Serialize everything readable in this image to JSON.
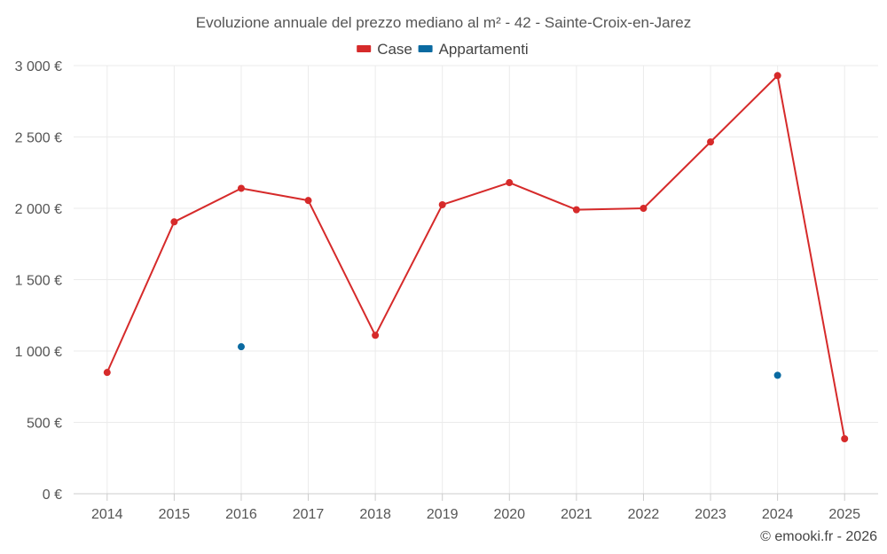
{
  "chart_data": {
    "type": "line",
    "title": "Evoluzione annuale del prezzo mediano al m² - 42 - Sainte-Croix-en-Jarez",
    "categories": [
      "2014",
      "2015",
      "2016",
      "2017",
      "2018",
      "2019",
      "2020",
      "2021",
      "2022",
      "2023",
      "2024",
      "2025"
    ],
    "series": [
      {
        "name": "Case",
        "color": "#d62a2a",
        "values": [
          850,
          1905,
          2140,
          2055,
          1110,
          2025,
          2180,
          1990,
          2000,
          2465,
          2930,
          385
        ]
      },
      {
        "name": "Appartamenti",
        "color": "#0a6aa1",
        "values": [
          null,
          null,
          1030,
          null,
          null,
          null,
          null,
          null,
          null,
          null,
          830,
          null
        ]
      }
    ],
    "ylim": [
      0,
      3000
    ],
    "yticks": [
      0,
      500,
      1000,
      1500,
      2000,
      2500,
      3000
    ],
    "ytick_labels": [
      "0 €",
      "500 €",
      "1 000 €",
      "1 500 €",
      "2 000 €",
      "2 500 €",
      "3 000 €"
    ],
    "xlabel": "",
    "ylabel": "",
    "grid": true,
    "legend_position": "top-center"
  },
  "credit": "© emooki.fr - 2026"
}
